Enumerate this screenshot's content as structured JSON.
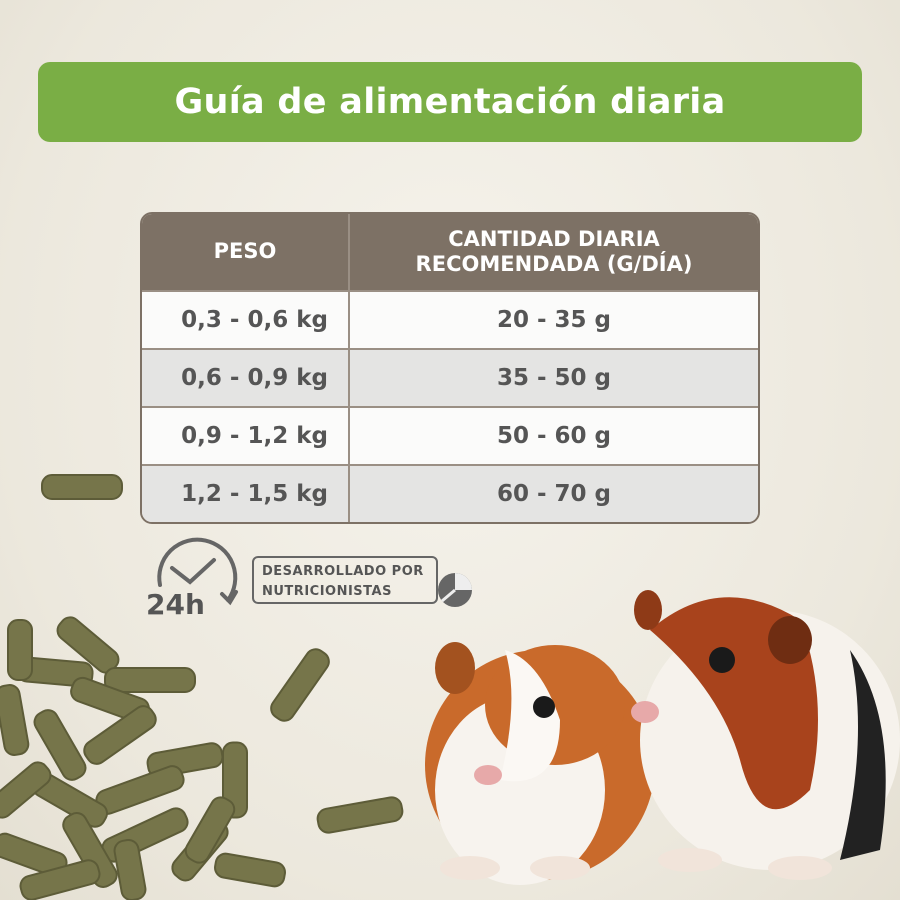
{
  "header": {
    "title": "Guía de alimentación diaria"
  },
  "table": {
    "columns": [
      "PESO",
      "CANTIDAD DIARIA RECOMENDADA (G/DÍA)"
    ],
    "rows": [
      [
        "0,3 - 0,6 kg",
        "20 - 35 g"
      ],
      [
        "0,6 - 0,9 kg",
        "35 - 50 g"
      ],
      [
        "0,9 - 1,2 kg",
        "50 - 60 g"
      ],
      [
        "1,2 - 1,5 kg",
        "60 - 70 g"
      ]
    ]
  },
  "badges": {
    "clock": "24h",
    "developed": "DESARROLLADO POR NUTRICIONISTAS"
  }
}
